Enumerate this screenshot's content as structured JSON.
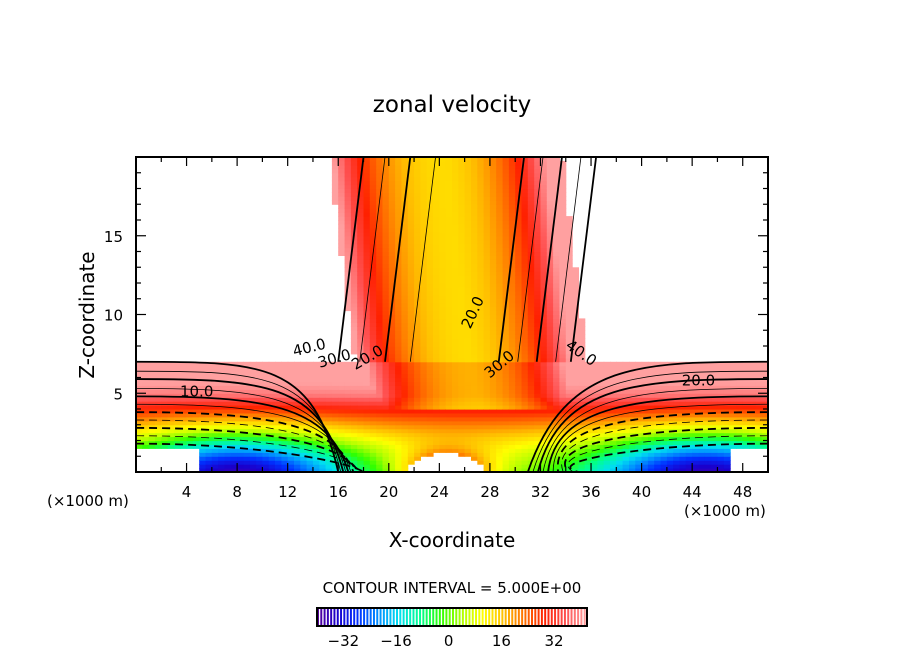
{
  "chart_data": {
    "type": "heatmap",
    "subtype": "filled-contour",
    "title": "zonal velocity",
    "xlabel": "X-coordinate",
    "ylabel": "Z-coordinate",
    "x_unit_left": "(×1000 m)",
    "x_unit_right": "(×1000 m)",
    "xlim": [
      0,
      50
    ],
    "ylim": [
      0,
      20
    ],
    "xticks": [
      4,
      8,
      12,
      16,
      20,
      24,
      28,
      32,
      36,
      40,
      44,
      48
    ],
    "yticks": [
      5,
      10,
      15
    ],
    "contour_labels": [
      {
        "text": "40.0",
        "x": 13.8,
        "z": 7.6,
        "angle": -14
      },
      {
        "text": "30.0",
        "x": 15.8,
        "z": 6.9,
        "angle": -16
      },
      {
        "text": "20.0",
        "x": 18.5,
        "z": 7.0,
        "angle": -30
      },
      {
        "text": "10.0",
        "x": 4.8,
        "z": 4.8,
        "angle": 0
      },
      {
        "text": "20.0",
        "x": 27.0,
        "z": 10.0,
        "angle": -65
      },
      {
        "text": "30.0",
        "x": 29.0,
        "z": 6.6,
        "angle": -40
      },
      {
        "text": "40.0",
        "x": 35.0,
        "z": 7.3,
        "angle": 35
      },
      {
        "text": "20.0",
        "x": 44.5,
        "z": 5.5,
        "angle": 0
      }
    ],
    "contour_interval_label": "CONTOUR INTERVAL = 5.000E+00",
    "contour_interval": 5.0,
    "colorbar": {
      "range": [
        -40,
        42
      ],
      "ticks": [
        "-32",
        "-16",
        "0",
        "16",
        "32"
      ],
      "tick_values": [
        -32,
        -16,
        0,
        16,
        32
      ],
      "tick_text": [
        "−32",
        "−16",
        "0",
        "16",
        "32"
      ]
    },
    "colormap": [
      "#5a0099",
      "#1a00cc",
      "#0030ff",
      "#0090ff",
      "#00e0f0",
      "#00ff90",
      "#30ff00",
      "#b0ff00",
      "#ffff00",
      "#ffc000",
      "#ff7000",
      "#ff2000",
      "#ff5050",
      "#ffa0a0"
    ],
    "negative_contours_dashed": true,
    "grid": false
  }
}
